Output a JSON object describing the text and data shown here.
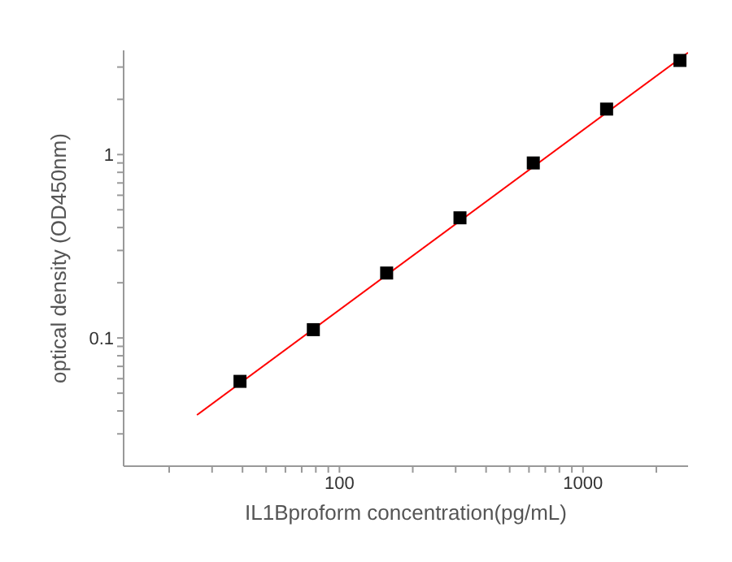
{
  "chart_data": {
    "type": "scatter",
    "xlabel": "IL1Bproform  concentration(pg/mL)",
    "ylabel": "optical density (OD450nm)",
    "log": "xy",
    "grid": false,
    "marker": "square",
    "x": [
      39.06,
      78.13,
      156.25,
      312.5,
      625,
      1250,
      2500
    ],
    "series": [
      {
        "color": "#000000",
        "values": [
          0.058,
          0.111,
          0.226,
          0.452,
          0.9,
          1.77,
          3.26
        ]
      },
      {
        "type": "line",
        "color": "#ff0000",
        "x": [
          26,
          2700
        ],
        "values": [
          0.038,
          3.6
        ],
        "marker": "none"
      }
    ],
    "xlim": [
      13,
      2700
    ],
    "ylim": [
      0.02,
      3.7
    ],
    "xticks": [
      {
        "value": 20,
        "label": null
      },
      {
        "value": 30,
        "label": null
      },
      {
        "value": 40,
        "label": null
      },
      {
        "value": 50,
        "label": null
      },
      {
        "value": 60,
        "label": null
      },
      {
        "value": 70,
        "label": null
      },
      {
        "value": 80,
        "label": null
      },
      {
        "value": 90,
        "label": null
      },
      100,
      {
        "value": 200,
        "label": null
      },
      {
        "value": 300,
        "label": null
      },
      {
        "value": 400,
        "label": null
      },
      {
        "value": 500,
        "label": null
      },
      {
        "value": 600,
        "label": null
      },
      {
        "value": 700,
        "label": null
      },
      {
        "value": 800,
        "label": null
      },
      {
        "value": 900,
        "label": null
      },
      1000,
      {
        "value": 2000,
        "label": null
      }
    ],
    "yticks": [
      {
        "value": 0.03,
        "label": null
      },
      {
        "value": 0.04,
        "label": null
      },
      {
        "value": 0.05,
        "label": null
      },
      {
        "value": 0.06,
        "label": null
      },
      {
        "value": 0.07,
        "label": null
      },
      {
        "value": 0.08,
        "label": null
      },
      {
        "value": 0.09,
        "label": null
      },
      0.1,
      {
        "value": 0.2,
        "label": null
      },
      {
        "value": 0.3,
        "label": null
      },
      {
        "value": 0.4,
        "label": null
      },
      {
        "value": 0.5,
        "label": null
      },
      {
        "value": 0.6,
        "label": null
      },
      {
        "value": 0.7,
        "label": null
      },
      {
        "value": 0.8,
        "label": null
      },
      {
        "value": 0.9,
        "label": null
      },
      1,
      {
        "value": 2,
        "label": null
      },
      {
        "value": 3,
        "label": null
      }
    ]
  }
}
